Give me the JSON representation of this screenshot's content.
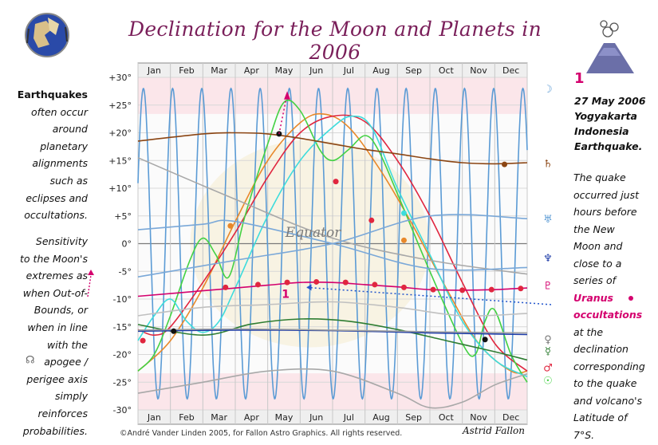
{
  "title": "Declination for the Moon and Planets in 2006",
  "left_panel": {
    "lead": "Earthquakes",
    "lines1": [
      "often occur",
      "around",
      "planetary",
      "alignments",
      "such as",
      "eclipses and",
      "occultations."
    ],
    "lines2": [
      "Sensitivity",
      "to the Moon's",
      "extremes as",
      "when Out-of-",
      "Bounds, or",
      "when in line",
      "with the",
      "apogee /",
      "perigee axis",
      "simply",
      "reinforces",
      "probabilities."
    ]
  },
  "right_panel": {
    "number": "1",
    "heading": [
      "27 May 2006",
      "Yogyakarta",
      "Indonesia",
      "Earthquake."
    ],
    "lines": [
      "The quake",
      "occurred just",
      "hours before",
      "the New",
      "Moon and",
      "close to a",
      "series of"
    ],
    "em1": "Uranus",
    "em2": "occultations",
    "lines_after": [
      "at the",
      "declination",
      "corresponding",
      "to the quake",
      "and volcano's",
      "Latitude of",
      "7°S."
    ]
  },
  "footer": {
    "copyright": "©André Vander Linden 2005, for Fallon Astro Graphics. All rights reserved.",
    "author": "Astrid Fallon"
  },
  "chart_data": {
    "type": "line",
    "title": "Declination for the Moon and Planets in 2006",
    "xlabel": "",
    "ylabel": "",
    "x_unit": "month of 2006",
    "xlim": [
      0,
      12
    ],
    "ylim": [
      -30,
      30
    ],
    "categories": [
      "Jan",
      "Feb",
      "Mar",
      "Apr",
      "May",
      "Jun",
      "Jul",
      "Aug",
      "Sep",
      "Oct",
      "Nov",
      "Dec"
    ],
    "y_ticks": [
      30,
      25,
      20,
      15,
      10,
      5,
      0,
      -5,
      -10,
      -15,
      -20,
      -25,
      -30
    ],
    "y_tick_labels": [
      "+30°",
      "+25°",
      "+20°",
      "+15°",
      "+10°",
      "+5°",
      "0°",
      "-5°",
      "-10°",
      "-15°",
      "-20°",
      "-25°",
      "-30°"
    ],
    "grid": true,
    "equator_label": "Equator",
    "marker_label": "1",
    "legend_glyphs": [
      "☽",
      "♄",
      "♅",
      "♆",
      "♇",
      "♀",
      "☿",
      "♂",
      "☉"
    ],
    "moon": {
      "name": "Moon",
      "color": "#5b9bd5",
      "amplitude": 28,
      "offset": 0,
      "period_months": 0.9
    },
    "series": [
      {
        "name": "Sun",
        "color": "#e8882a",
        "points": [
          [
            0,
            -23
          ],
          [
            1,
            -17.5
          ],
          [
            2,
            -8
          ],
          [
            3,
            4
          ],
          [
            4,
            15
          ],
          [
            5,
            21.8
          ],
          [
            5.7,
            23.4
          ],
          [
            6.5,
            21
          ],
          [
            7.5,
            13
          ],
          [
            8.5,
            3
          ],
          [
            9.5,
            -8
          ],
          [
            10.5,
            -18
          ],
          [
            11.5,
            -23
          ],
          [
            12,
            -23
          ]
        ]
      },
      {
        "name": "Venus",
        "color": "#e0263f",
        "points": [
          [
            0,
            -15.5
          ],
          [
            0.5,
            -16.5
          ],
          [
            1,
            -15
          ],
          [
            2,
            -7
          ],
          [
            3,
            2
          ],
          [
            4,
            12
          ],
          [
            5,
            20
          ],
          [
            6,
            23
          ],
          [
            7,
            22
          ],
          [
            8,
            15
          ],
          [
            9,
            5
          ],
          [
            10,
            -7
          ],
          [
            11,
            -18
          ],
          [
            12,
            -23
          ]
        ]
      },
      {
        "name": "Mercury",
        "color": "#43d143",
        "points": [
          [
            0,
            -23
          ],
          [
            0.5,
            -20
          ],
          [
            1,
            -13
          ],
          [
            1.6,
            -3
          ],
          [
            2,
            1
          ],
          [
            2.4,
            -2
          ],
          [
            2.8,
            -6
          ],
          [
            3.3,
            5
          ],
          [
            4,
            18
          ],
          [
            4.5,
            25.5
          ],
          [
            5,
            24
          ],
          [
            5.6,
            17
          ],
          [
            6,
            15
          ],
          [
            6.5,
            17
          ],
          [
            7,
            19.5
          ],
          [
            7.4,
            17
          ],
          [
            8,
            9
          ],
          [
            9,
            -5
          ],
          [
            10,
            -18
          ],
          [
            10.4,
            -20
          ],
          [
            10.7,
            -14
          ],
          [
            11,
            -12
          ],
          [
            11.5,
            -20
          ],
          [
            12,
            -25
          ]
        ]
      },
      {
        "name": "Mars",
        "color": "#3ddcdc",
        "points": [
          [
            0,
            -17.5
          ],
          [
            0.5,
            -13
          ],
          [
            1,
            -10
          ],
          [
            1.5,
            -14
          ],
          [
            2,
            -16
          ],
          [
            2.5,
            -14
          ],
          [
            3,
            -8
          ],
          [
            4,
            5
          ],
          [
            5,
            15
          ],
          [
            6,
            21
          ],
          [
            6.6,
            23
          ],
          [
            7.2,
            21
          ],
          [
            8,
            10
          ],
          [
            9,
            -2
          ],
          [
            10,
            -14
          ],
          [
            11,
            -21
          ],
          [
            12,
            -24
          ]
        ]
      },
      {
        "name": "Jupiter",
        "color": "#2e7d32",
        "points": [
          [
            0,
            -14.6
          ],
          [
            2,
            -16.5
          ],
          [
            3.5,
            -14.5
          ],
          [
            5,
            -13.6
          ],
          [
            6.5,
            -14
          ],
          [
            8,
            -15.5
          ],
          [
            9.5,
            -17.5
          ],
          [
            11,
            -19.5
          ],
          [
            12,
            -21
          ]
        ]
      },
      {
        "name": "Saturn",
        "color": "#8b4513",
        "points": [
          [
            0,
            18.5
          ],
          [
            2,
            19.8
          ],
          [
            3,
            20
          ],
          [
            4,
            19.8
          ],
          [
            5,
            19
          ],
          [
            6,
            18
          ],
          [
            7,
            17
          ],
          [
            8,
            16.2
          ],
          [
            9,
            15.3
          ],
          [
            10,
            14.6
          ],
          [
            11,
            14.4
          ],
          [
            12,
            14.6
          ]
        ]
      },
      {
        "name": "Uranus",
        "color": "#d4006e",
        "points": [
          [
            0,
            -9.5
          ],
          [
            2,
            -8.5
          ],
          [
            4,
            -7.5
          ],
          [
            5,
            -7
          ],
          [
            6,
            -7
          ],
          [
            7,
            -7.4
          ],
          [
            8,
            -7.8
          ],
          [
            9,
            -8.3
          ],
          [
            10,
            -8.4
          ],
          [
            11,
            -8.3
          ],
          [
            12,
            -8
          ]
        ]
      },
      {
        "name": "Neptune",
        "color": "#1f3da8",
        "points": [
          [
            0,
            -15.8
          ],
          [
            3,
            -15.6
          ],
          [
            6,
            -15.7
          ],
          [
            9,
            -16.1
          ],
          [
            12,
            -16.4
          ]
        ]
      },
      {
        "name": "Pluto",
        "color": "#a0a0a0",
        "points": [
          [
            0,
            -15.6
          ],
          [
            3,
            -15.4
          ],
          [
            6,
            -15.6
          ],
          [
            9,
            -15.9
          ],
          [
            12,
            -16.1
          ]
        ]
      },
      {
        "name": "Perigee",
        "color": "#a8a8a8",
        "points": [
          [
            0,
            15.5
          ],
          [
            3,
            8
          ],
          [
            6,
            1
          ],
          [
            9,
            -3
          ],
          [
            12,
            -5.5
          ]
        ]
      },
      {
        "name": "Apogee",
        "color": "#a8a8a8",
        "points": [
          [
            0,
            -27
          ],
          [
            2,
            -25
          ],
          [
            4,
            -23
          ],
          [
            6,
            -23
          ],
          [
            8,
            -27
          ],
          [
            9,
            -29.6
          ],
          [
            10,
            -28.6
          ],
          [
            11,
            -25.5
          ],
          [
            12,
            -23.5
          ]
        ]
      },
      {
        "name": "Node A",
        "color": "#7aa8d8",
        "points": [
          [
            0,
            2.5
          ],
          [
            2,
            3.5
          ],
          [
            3,
            4
          ],
          [
            6,
            0
          ],
          [
            9,
            -4.5
          ],
          [
            12,
            -4.3
          ]
        ]
      },
      {
        "name": "Node B",
        "color": "#7aa8d8",
        "points": [
          [
            0,
            -6
          ],
          [
            3,
            -3
          ],
          [
            6,
            0
          ],
          [
            9,
            5
          ],
          [
            12,
            4.5
          ]
        ]
      },
      {
        "name": "Band A",
        "color": "#c0c0c0",
        "points": [
          [
            0,
            -13
          ],
          [
            2,
            -11.5
          ],
          [
            4,
            -11
          ],
          [
            6,
            -10.5
          ],
          [
            8,
            -11.5
          ],
          [
            10,
            -13
          ],
          [
            12,
            -12.6
          ]
        ]
      }
    ],
    "markers": [
      {
        "series": "Venus",
        "x": 0.15,
        "y": -17.5,
        "color": "#e0263f"
      },
      {
        "series": "Venus",
        "x": 6.1,
        "y": 11.2,
        "color": "#e0263f"
      },
      {
        "series": "Venus",
        "x": 7.2,
        "y": 4.2,
        "color": "#e0263f"
      },
      {
        "series": "Sun",
        "x": 2.85,
        "y": 3.2,
        "color": "#e8882a"
      },
      {
        "series": "Sun",
        "x": 8.2,
        "y": 0.6,
        "color": "#e8882a"
      },
      {
        "series": "Mars",
        "x": 8.2,
        "y": 5.5,
        "color": "#3ddcdc"
      },
      {
        "series": "Saturn",
        "x": 4.35,
        "y": 19.8,
        "color": "#111111"
      },
      {
        "series": "Saturn",
        "x": 11.3,
        "y": 14.3,
        "color": "#8b4513"
      },
      {
        "series": "Neptune",
        "x": 1.1,
        "y": -15.8,
        "color": "#111111"
      },
      {
        "series": "Jupiter",
        "x": 10.7,
        "y": -17.3,
        "color": "#111111"
      },
      {
        "series": "Uranus",
        "x": 2.7,
        "y": -7.9,
        "color": "#e0263f"
      },
      {
        "series": "Uranus",
        "x": 3.7,
        "y": -7.4,
        "color": "#e0263f"
      },
      {
        "series": "Uranus",
        "x": 4.6,
        "y": -7.0,
        "color": "#e0263f"
      },
      {
        "series": "Uranus",
        "x": 5.5,
        "y": -6.9,
        "color": "#e0263f"
      },
      {
        "series": "Uranus",
        "x": 6.4,
        "y": -7.0,
        "color": "#e0263f"
      },
      {
        "series": "Uranus",
        "x": 7.3,
        "y": -7.4,
        "color": "#e0263f"
      },
      {
        "series": "Uranus",
        "x": 8.2,
        "y": -7.9,
        "color": "#e0263f"
      },
      {
        "series": "Uranus",
        "x": 9.1,
        "y": -8.3,
        "color": "#e0263f"
      },
      {
        "series": "Uranus",
        "x": 10.0,
        "y": -8.4,
        "color": "#e0263f"
      },
      {
        "series": "Uranus",
        "x": 10.9,
        "y": -8.3,
        "color": "#e0263f"
      },
      {
        "series": "Uranus",
        "x": 11.8,
        "y": -8.1,
        "color": "#e0263f"
      }
    ]
  }
}
